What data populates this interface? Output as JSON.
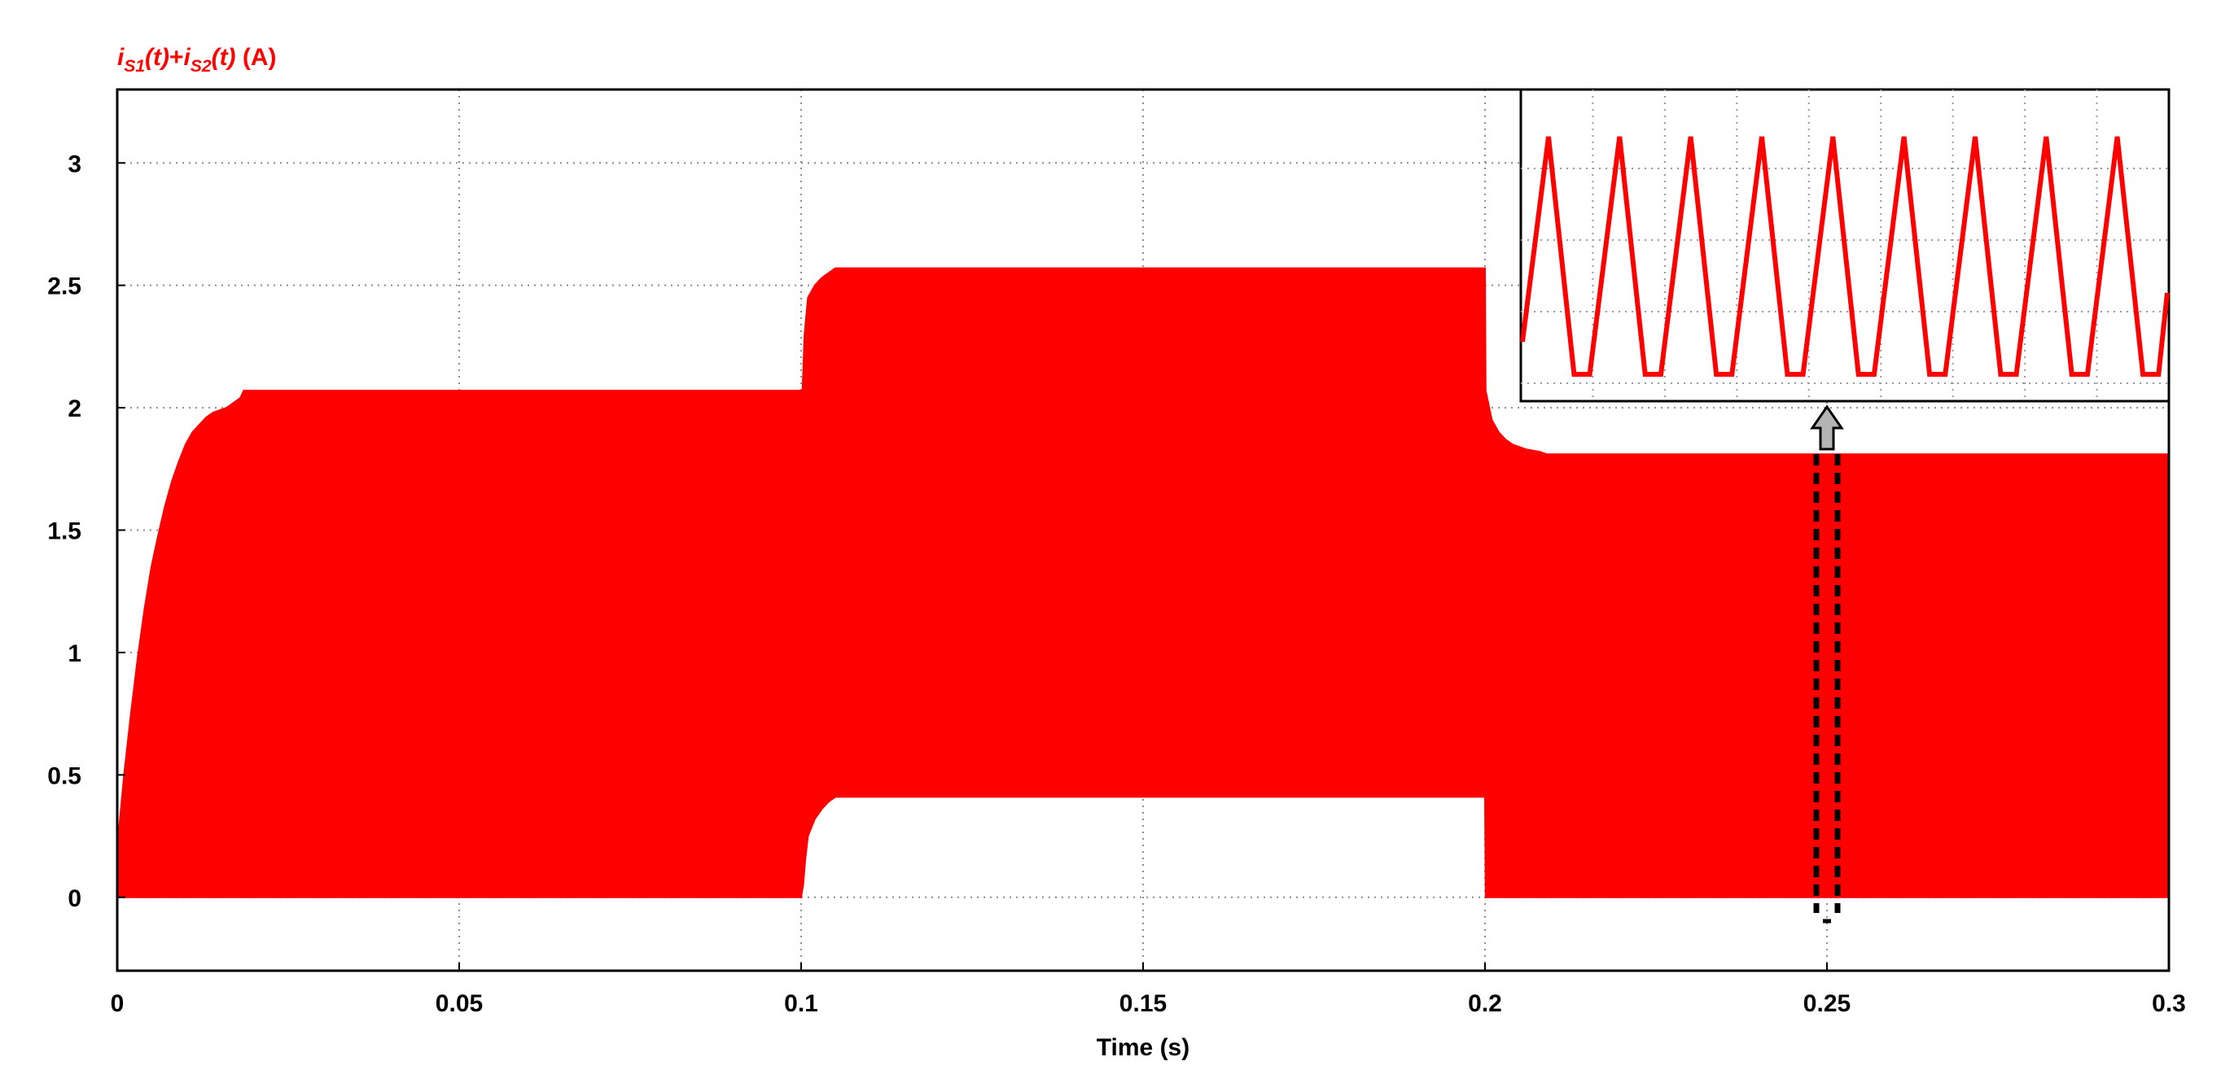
{
  "chart_data": {
    "type": "area",
    "title": "",
    "ylabel": {
      "term1": "i",
      "sub1": "S1",
      "arg1": "(t)",
      "plus": "+",
      "term2": "i",
      "sub2": "S2",
      "arg2": "(t)",
      "unit": " (A)"
    },
    "xlabel": "Time (s)",
    "xlim": [
      0,
      0.3
    ],
    "ylim": [
      -0.3,
      3.3
    ],
    "grid": true,
    "x_ticks": [
      "0",
      "0.05",
      "0.1",
      "0.15",
      "0.2",
      "0.25",
      "0.3"
    ],
    "x_tick_values": [
      0,
      0.05,
      0.1,
      0.15,
      0.2,
      0.25,
      0.3
    ],
    "y_ticks": [
      "0",
      "0.5",
      "1",
      "1.5",
      "2",
      "2.5",
      "3"
    ],
    "y_tick_values": [
      0,
      0.5,
      1,
      1.5,
      2,
      2.5,
      3
    ],
    "series": [
      {
        "color": "#ff0000",
        "upper_envelope": {
          "x": [
            0,
            0.0005,
            0.001,
            0.002,
            0.003,
            0.004,
            0.005,
            0.006,
            0.007,
            0.008,
            0.009,
            0.01,
            0.011,
            0.012,
            0.013,
            0.014,
            0.015,
            0.016,
            0.017,
            0.018,
            0.0185,
            0.1,
            0.1002,
            0.1005,
            0.101,
            0.102,
            0.103,
            0.105,
            0.2,
            0.2001,
            0.201,
            0.202,
            0.203,
            0.204,
            0.205,
            0.206,
            0.207,
            0.208,
            0.209,
            0.3
          ],
          "y": [
            0.2,
            0.35,
            0.5,
            0.75,
            0.98,
            1.18,
            1.35,
            1.48,
            1.6,
            1.7,
            1.78,
            1.85,
            1.9,
            1.93,
            1.96,
            1.98,
            1.99,
            2.0,
            2.02,
            2.04,
            2.07,
            2.07,
            2.07,
            2.3,
            2.45,
            2.5,
            2.53,
            2.57,
            2.57,
            2.07,
            1.95,
            1.9,
            1.87,
            1.85,
            1.84,
            1.83,
            1.825,
            1.82,
            1.81,
            1.81
          ]
        },
        "lower_envelope": {
          "x": [
            0,
            0.1,
            0.1003,
            0.1006,
            0.101,
            0.102,
            0.103,
            0.104,
            0.105,
            0.2,
            0.2001,
            0.3
          ],
          "y": [
            0,
            0,
            0.05,
            0.15,
            0.25,
            0.32,
            0.36,
            0.39,
            0.41,
            0.41,
            0,
            0
          ]
        }
      }
    ],
    "annotation": {
      "type": "zoom-inset",
      "x": 0.25,
      "inset_color": "#ff0000",
      "inset_peak_count": 9
    }
  }
}
